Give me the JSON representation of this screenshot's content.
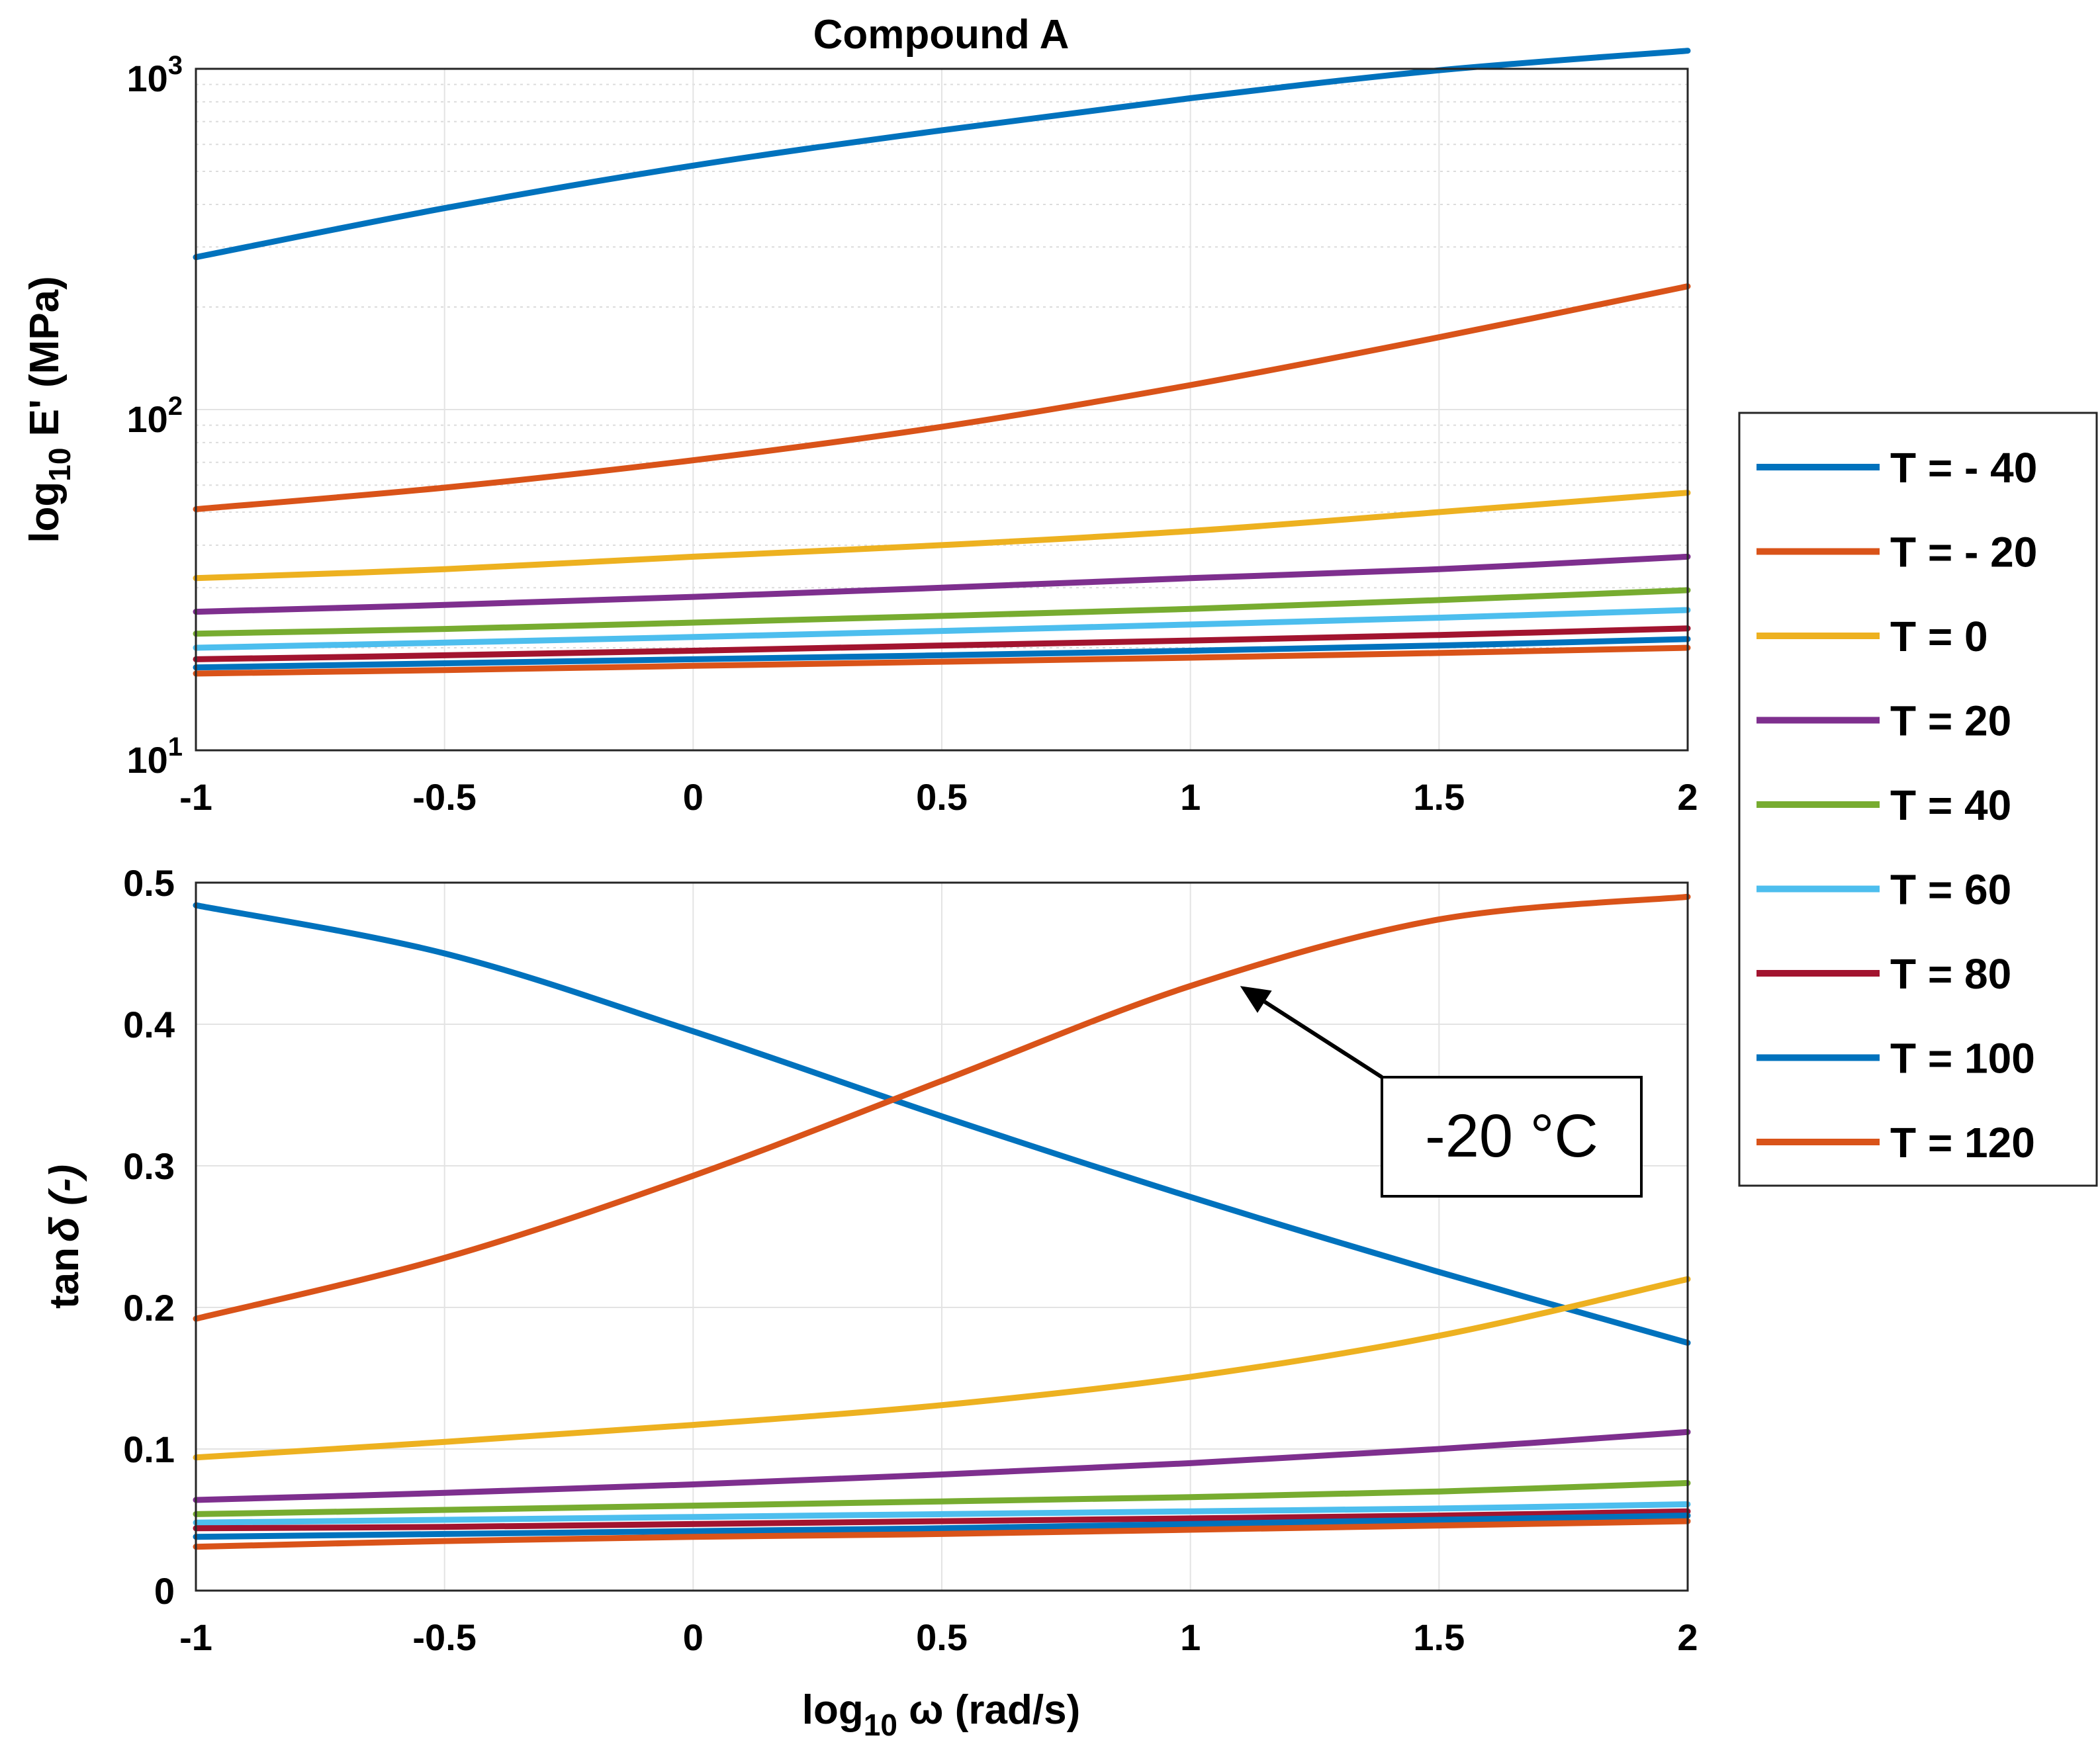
{
  "chart_data": [
    {
      "type": "line",
      "title": "Compound A",
      "xlabel": "",
      "ylabel": {
        "prefix": "log",
        "sub": "10",
        "rest": " E' (MPa)"
      },
      "yscale": "log",
      "xlim": [
        -1,
        2
      ],
      "ylim": [
        10,
        1000
      ],
      "xticks": [
        "-1",
        "-0.5",
        "0",
        "0.5",
        "1",
        "1.5",
        "2"
      ],
      "yticks": [
        {
          "base": "10",
          "exp": "1"
        },
        {
          "base": "10",
          "exp": "2"
        },
        {
          "base": "10",
          "exp": "3"
        }
      ],
      "grid": true,
      "x": [
        -1,
        -0.5,
        0,
        0.5,
        1,
        1.5,
        2
      ],
      "series": [
        {
          "name": "T = - 40",
          "values": [
            280,
            390,
            520,
            660,
            820,
            990,
            1130
          ]
        },
        {
          "name": "T = - 20",
          "values": [
            51,
            59,
            71,
            89,
            118,
            163,
            230
          ]
        },
        {
          "name": "T = 0",
          "values": [
            32,
            34,
            37,
            40,
            44,
            50,
            57
          ]
        },
        {
          "name": "T = 20",
          "values": [
            25.5,
            26.7,
            28.2,
            30,
            32,
            34,
            37
          ]
        },
        {
          "name": "T = 40",
          "values": [
            22,
            22.7,
            23.7,
            24.8,
            26,
            27.6,
            29.5
          ]
        },
        {
          "name": "T = 60",
          "values": [
            20,
            20.7,
            21.5,
            22.4,
            23.4,
            24.5,
            25.8
          ]
        },
        {
          "name": "T = 80",
          "values": [
            18.5,
            19,
            19.6,
            20.3,
            21,
            21.8,
            22.8
          ]
        },
        {
          "name": "T = 100",
          "values": [
            17.5,
            18,
            18.5,
            19,
            19.6,
            20.3,
            21.2
          ]
        },
        {
          "name": "T = 120",
          "values": [
            16.8,
            17.2,
            17.7,
            18.2,
            18.7,
            19.3,
            20
          ]
        }
      ]
    },
    {
      "type": "line",
      "title": "",
      "xlabel": {
        "prefix": "log",
        "sub": "10",
        "rest": " ω  (rad/s)"
      },
      "ylabel": {
        "prefix": "tan",
        "rest": "δ (-)"
      },
      "yscale": "linear",
      "xlim": [
        -1,
        2
      ],
      "ylim": [
        0,
        0.5
      ],
      "xticks": [
        "-1",
        "-0.5",
        "0",
        "0.5",
        "1",
        "1.5",
        "2"
      ],
      "yticks": [
        "0",
        "0.1",
        "0.2",
        "0.3",
        "0.4",
        "0.5"
      ],
      "grid": true,
      "x": [
        -1,
        -0.5,
        0,
        0.5,
        1,
        1.5,
        2
      ],
      "series": [
        {
          "name": "T = - 40",
          "values": [
            0.484,
            0.45,
            0.395,
            0.335,
            0.278,
            0.225,
            0.175
          ]
        },
        {
          "name": "T = - 20",
          "values": [
            0.192,
            0.235,
            0.293,
            0.36,
            0.427,
            0.474,
            0.49
          ]
        },
        {
          "name": "T = 0",
          "values": [
            0.094,
            0.105,
            0.117,
            0.131,
            0.151,
            0.18,
            0.22
          ]
        },
        {
          "name": "T = 20",
          "values": [
            0.064,
            0.069,
            0.075,
            0.082,
            0.09,
            0.1,
            0.112
          ]
        },
        {
          "name": "T = 40",
          "values": [
            0.054,
            0.057,
            0.06,
            0.063,
            0.066,
            0.07,
            0.076
          ]
        },
        {
          "name": "T = 60",
          "values": [
            0.048,
            0.05,
            0.052,
            0.054,
            0.056,
            0.058,
            0.061
          ]
        },
        {
          "name": "T = 80",
          "values": [
            0.044,
            0.045,
            0.047,
            0.049,
            0.051,
            0.053,
            0.056
          ]
        },
        {
          "name": "T = 100",
          "values": [
            0.038,
            0.04,
            0.042,
            0.044,
            0.047,
            0.05,
            0.053
          ]
        },
        {
          "name": "T = 120",
          "values": [
            0.031,
            0.035,
            0.038,
            0.04,
            0.043,
            0.046,
            0.049
          ]
        }
      ],
      "annotation": {
        "text": "-20 °C",
        "points_to": {
          "x": 1.1,
          "y": 0.427
        }
      }
    }
  ],
  "legend": {
    "placement": "right",
    "entries": [
      "T = - 40",
      "T = - 20",
      "T = 0",
      "T = 20",
      "T = 40",
      "T = 60",
      "T = 80",
      "T = 100",
      "T = 120"
    ]
  },
  "colors": [
    "#0072BD",
    "#D95319",
    "#EDB120",
    "#7E2F8E",
    "#77AC30",
    "#4DBEEE",
    "#A2142F",
    "#0072BD",
    "#D95319"
  ]
}
